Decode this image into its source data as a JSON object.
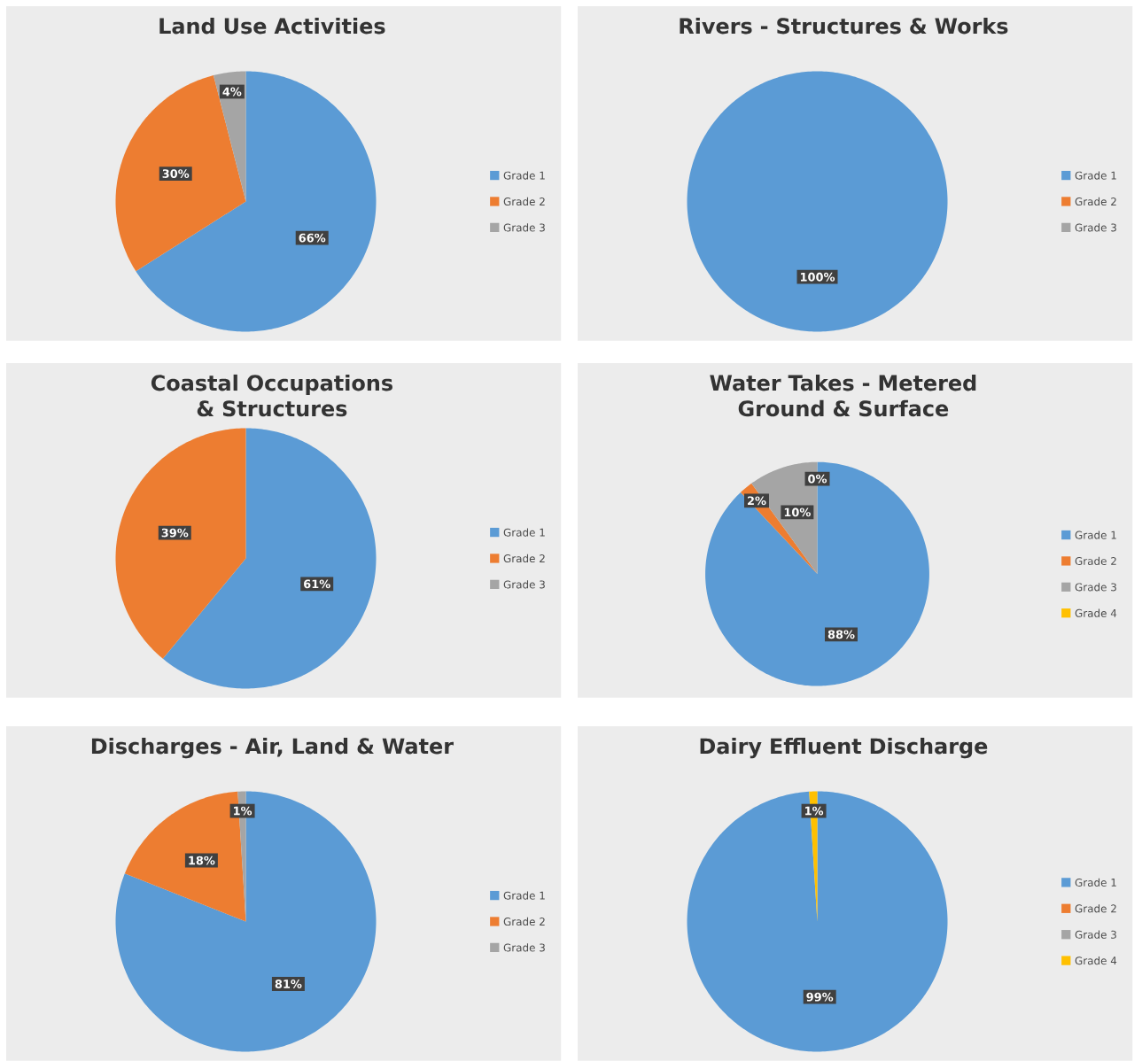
{
  "chart_data": [
    {
      "type": "pie",
      "title": "Land Use Activities",
      "categories": [
        "Grade 1",
        "Grade 2",
        "Grade 3"
      ],
      "values": [
        66,
        30,
        4
      ],
      "colors": [
        "#5b9bd5",
        "#ed7d31",
        "#a5a5a5"
      ],
      "value_labels": [
        "66%",
        "30%",
        "4%"
      ],
      "legend": "right"
    },
    {
      "type": "pie",
      "title": "Rivers -  Structures & Works",
      "categories": [
        "Grade 1",
        "Grade 2",
        "Grade 3"
      ],
      "values": [
        100,
        0,
        0
      ],
      "colors": [
        "#5b9bd5",
        "#ed7d31",
        "#a5a5a5"
      ],
      "value_labels": [
        "100%",
        null,
        null
      ],
      "legend": "right"
    },
    {
      "type": "pie",
      "title": "Coastal Occupations & Structures",
      "categories": [
        "Grade 1",
        "Grade 2",
        "Grade 3"
      ],
      "values": [
        61,
        39,
        0
      ],
      "colors": [
        "#5b9bd5",
        "#ed7d31",
        "#a5a5a5"
      ],
      "value_labels": [
        "61%",
        "39%",
        null
      ],
      "legend": "right"
    },
    {
      "type": "pie",
      "title": "Water Takes - Metered Ground & Surface",
      "categories": [
        "Grade 1",
        "Grade 2",
        "Grade 3",
        "Grade 4"
      ],
      "values": [
        88,
        2,
        10,
        0
      ],
      "colors": [
        "#5b9bd5",
        "#ed7d31",
        "#a5a5a5",
        "#ffc000"
      ],
      "value_labels": [
        "88%",
        "2%",
        "10%",
        "0%"
      ],
      "legend": "right"
    },
    {
      "type": "pie",
      "title": "Discharges - Air, Land & Water",
      "categories": [
        "Grade 1",
        "Grade 2",
        "Grade 3"
      ],
      "values": [
        81,
        18,
        1
      ],
      "colors": [
        "#5b9bd5",
        "#ed7d31",
        "#a5a5a5"
      ],
      "value_labels": [
        "81%",
        "18%",
        "1%"
      ],
      "legend": "right"
    },
    {
      "type": "pie",
      "title": "Dairy Effluent Discharge",
      "categories": [
        "Grade 1",
        "Grade 2",
        "Grade 3",
        "Grade 4"
      ],
      "values": [
        99,
        0,
        0,
        1
      ],
      "colors": [
        "#5b9bd5",
        "#ed7d31",
        "#a5a5a5",
        "#ffc000"
      ],
      "value_labels": [
        "99%",
        null,
        null,
        "1%"
      ],
      "legend": "right"
    }
  ]
}
